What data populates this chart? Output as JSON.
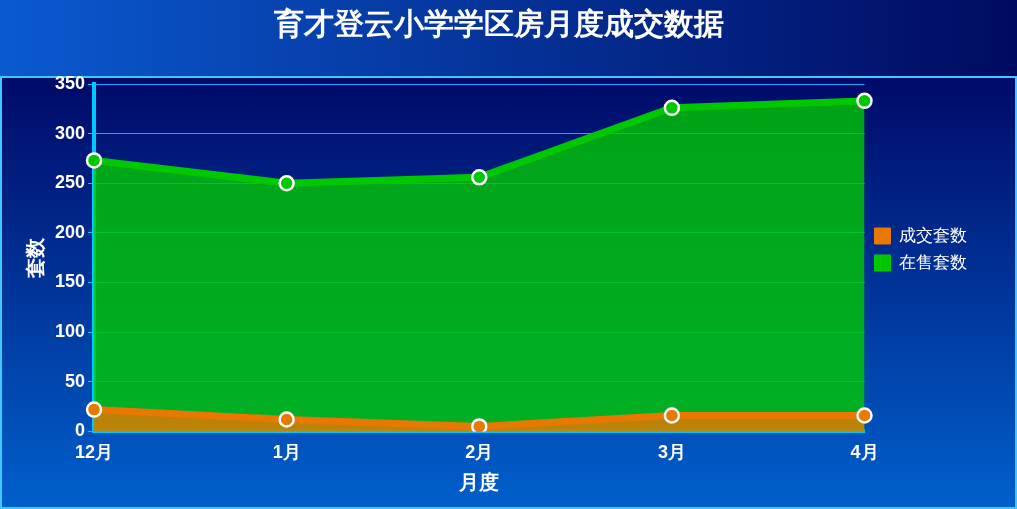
{
  "chart_data": {
    "type": "area",
    "title": "育才登云小学学区房月度成交数据",
    "xlabel": "月度",
    "ylabel": "套数",
    "categories": [
      "12月",
      "1月",
      "2月",
      "3月",
      "4月"
    ],
    "series": [
      {
        "name": "在售套数",
        "color": "#00c800",
        "values": [
          273,
          250,
          256,
          326,
          333
        ]
      },
      {
        "name": "成交套数",
        "color": "#e87800",
        "values": [
          22,
          12,
          5,
          16,
          16
        ]
      }
    ],
    "ylim": [
      0,
      350
    ],
    "yticks": [
      0,
      50,
      100,
      150,
      200,
      250,
      300,
      350
    ],
    "grid": "y",
    "legend": "right",
    "marker": "circle"
  }
}
